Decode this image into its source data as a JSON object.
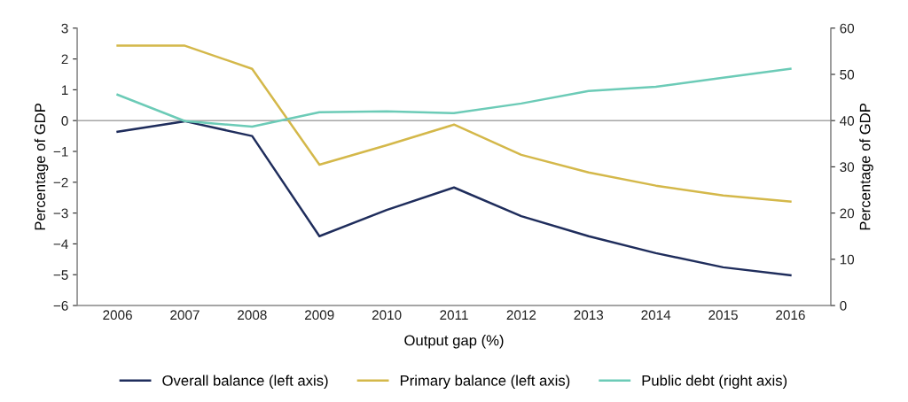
{
  "chart_data": {
    "type": "line",
    "xlabel": "Output gap (%)",
    "ylabel": "Percentage of GDP",
    "y2label": "Percentage of GDP",
    "categories": [
      "2006",
      "2007",
      "2008",
      "2009",
      "2010",
      "2011",
      "2012",
      "2013",
      "2014",
      "2015",
      "2016"
    ],
    "series": [
      {
        "name": "Overall balance (left axis)",
        "color": "#1f2d5c",
        "values": [
          -0.36,
          -0.02,
          -0.5,
          -3.75,
          -2.9,
          -2.17,
          -3.1,
          -3.75,
          -4.3,
          -4.76,
          -5.02
        ]
      },
      {
        "name": "Primary balance (left axis)",
        "color": "#d4b84a",
        "values": [
          2.43,
          2.43,
          1.68,
          -1.43,
          -0.8,
          -0.13,
          -1.11,
          -1.68,
          -2.11,
          -2.43,
          -2.63
        ]
      },
      {
        "name": "Public debt (right axis)",
        "color": "#6ccbb7",
        "axis": "y2",
        "values": [
          45.6,
          39.9,
          38.7,
          41.8,
          42.0,
          41.6,
          43.7,
          46.4,
          47.3,
          49.3,
          51.2
        ]
      }
    ],
    "ylim": [
      -6,
      3
    ],
    "yticks": [
      {
        "value": -6,
        "label": "−6"
      },
      {
        "value": -5,
        "label": "−5"
      },
      {
        "value": -4,
        "label": "−4"
      },
      {
        "value": -3,
        "label": "−3"
      },
      {
        "value": -2,
        "label": "−2"
      },
      {
        "value": -1,
        "label": "−1"
      },
      0,
      1,
      2,
      3
    ],
    "y2lim": [
      0,
      60
    ],
    "y2ticks": [
      0,
      10,
      20,
      30,
      40,
      50,
      60
    ],
    "ref_lines": [
      {
        "axis": "y",
        "value": 0,
        "color": "#a6a6a6"
      }
    ],
    "grid": false,
    "legend": "bottom",
    "marker": "none",
    "line_style": "solid"
  }
}
